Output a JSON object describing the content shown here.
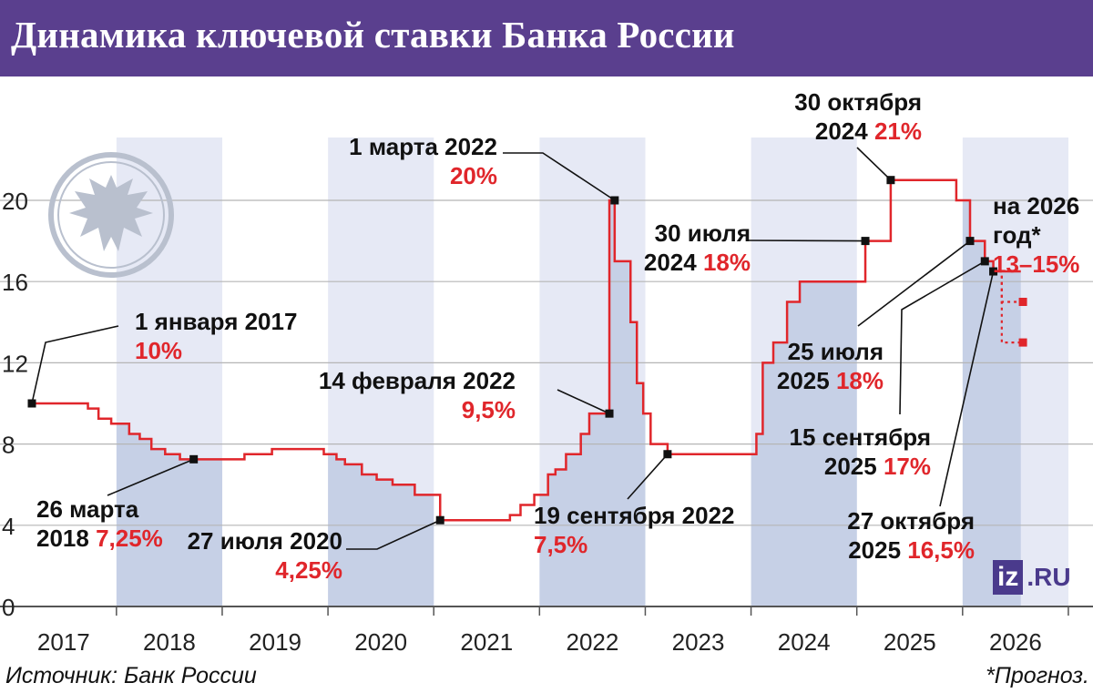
{
  "header": {
    "title": "Динамика ключевой ставки Банка России"
  },
  "footer": {
    "source": "Источник: Банк России",
    "note": "*Прогноз."
  },
  "logo": {
    "iz": "iz",
    "ru": ".RU"
  },
  "colors": {
    "header_bg": "#5a3f8e",
    "line": "#e0262b",
    "band": "#e6e9f5",
    "area": "#c6d0e6",
    "grid": "#b5b5b5",
    "emblem": "#b9c0ce"
  },
  "chart_data": {
    "type": "line",
    "title": "Динамика ключевой ставки Банка России",
    "ylim": [
      0,
      22
    ],
    "yticks": [
      "0",
      "4",
      "8",
      "12",
      "16",
      "20"
    ],
    "ytick_values": [
      0,
      4,
      8,
      12,
      16,
      20
    ],
    "xticks": [
      "2017",
      "2018",
      "2019",
      "2020",
      "2021",
      "2022",
      "2023",
      "2024",
      "2025",
      "2026"
    ],
    "xlim": [
      2016.7,
      2026.5
    ],
    "grid": true,
    "series": [
      {
        "step": true,
        "x": [
          2016.7,
          2017.23,
          2017.33,
          2017.45,
          2017.62,
          2017.72,
          2017.83,
          2017.96,
          2018.1,
          2018.23,
          2018.71,
          2018.97,
          2019.46,
          2019.58,
          2019.66,
          2019.82,
          2019.96,
          2020.11,
          2020.32,
          2020.56,
          2021.22,
          2021.32,
          2021.45,
          2021.58,
          2021.65,
          2021.75,
          2021.89,
          2021.97,
          2022.16,
          2022.21,
          2022.36,
          2022.42,
          2022.48,
          2022.55,
          2022.71,
          2023.55,
          2023.61,
          2023.71,
          2023.84,
          2023.96,
          2024.58,
          2024.82,
          2025.44,
          2025.57,
          2025.71,
          2025.79,
          2025.85,
          2026.05
        ],
        "y": [
          10,
          9.75,
          9.25,
          9.0,
          8.5,
          8.25,
          7.75,
          7.5,
          7.25,
          7.25,
          7.5,
          7.75,
          7.5,
          7.25,
          7.0,
          6.5,
          6.25,
          6.0,
          5.5,
          4.25,
          4.5,
          5.0,
          5.5,
          6.5,
          6.75,
          7.5,
          8.5,
          9.5,
          20,
          17,
          14,
          11,
          9.5,
          8,
          7.5,
          8.5,
          12,
          13,
          15,
          16,
          18,
          21,
          20,
          18,
          17,
          16.5,
          16.5,
          16.5
        ]
      },
      {
        "name": "",
        "dashed": true,
        "x": [
          2025.85,
          2025.87,
          2026.05
        ],
        "y": [
          16.5,
          15,
          15
        ]
      },
      {
        "name": "",
        "dashed": true,
        "x": [
          2025.85,
          2025.87,
          2026.05
        ],
        "y": [
          16.5,
          13,
          13
        ]
      }
    ],
    "markers": [
      {
        "x": 2016.7,
        "y": 10
      },
      {
        "x": 2018.23,
        "y": 7.25
      },
      {
        "x": 2020.56,
        "y": 4.25
      },
      {
        "x": 2022.16,
        "y": 9.5
      },
      {
        "x": 2022.21,
        "y": 20
      },
      {
        "x": 2022.71,
        "y": 7.5
      },
      {
        "x": 2024.58,
        "y": 18
      },
      {
        "x": 2024.82,
        "y": 21
      },
      {
        "x": 2025.57,
        "y": 18
      },
      {
        "x": 2025.71,
        "y": 17
      },
      {
        "x": 2025.79,
        "y": 16.5
      },
      {
        "x": 2026.07,
        "y": 15
      },
      {
        "x": 2026.07,
        "y": 13
      }
    ],
    "annotations": [
      {
        "date": "1 января 2017",
        "pct": "10%"
      },
      {
        "date": "26 марта",
        "date2": "2018",
        "pct": "7,25%"
      },
      {
        "date": "27 июля 2020",
        "pct": "4,25%"
      },
      {
        "date": "14 февраля 2022",
        "pct": "9,5%"
      },
      {
        "date": "1 марта 2022",
        "pct": "20%"
      },
      {
        "date": "19 сентября 2022",
        "pct": "7,5%"
      },
      {
        "date": "30 июля",
        "date2": "2024",
        "pct": "18%"
      },
      {
        "date": "30 октября",
        "date2": "2024",
        "pct": "21%"
      },
      {
        "date": "25 июля",
        "date2": "2025",
        "pct": "18%"
      },
      {
        "date": "15 сентября",
        "date2": "2025",
        "pct": "17%"
      },
      {
        "date": "27 октября",
        "date2": "2025",
        "pct": "16,5%"
      },
      {
        "date": "на 2026",
        "date2": "год*",
        "pct": "13–15%"
      }
    ]
  }
}
